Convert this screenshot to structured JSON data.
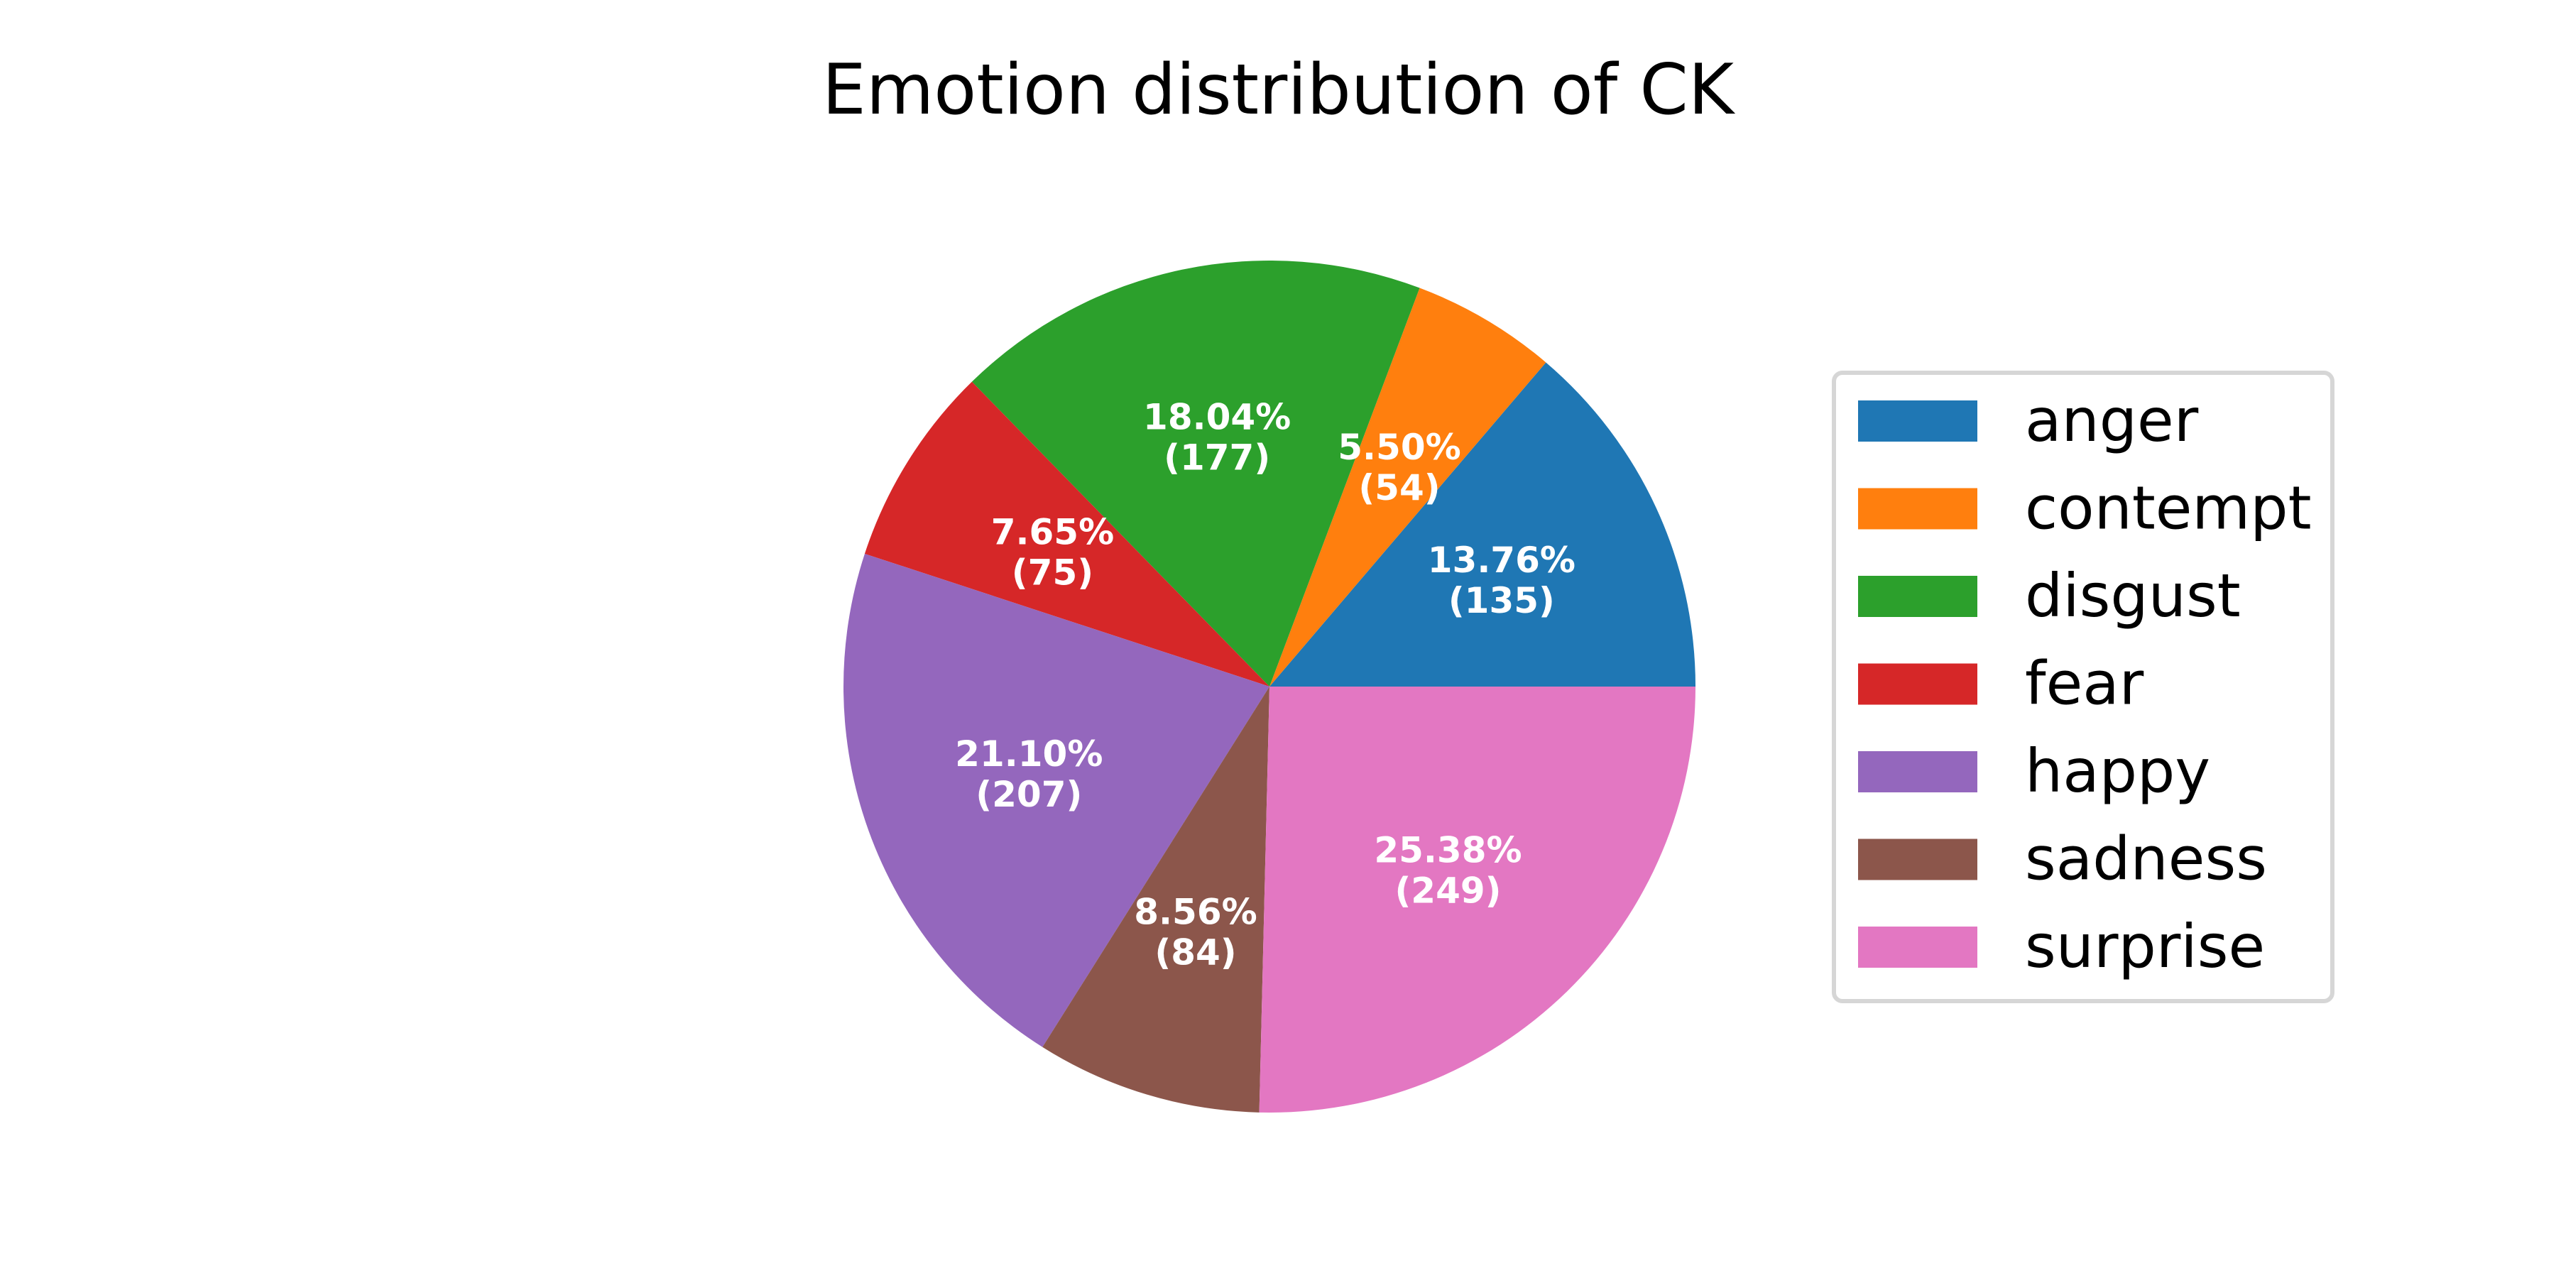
{
  "chart_data": {
    "type": "pie",
    "title": "Emotion distribution of CK",
    "categories": [
      "anger",
      "contempt",
      "disgust",
      "fear",
      "happy",
      "sadness",
      "surprise"
    ],
    "values": [
      135,
      54,
      177,
      75,
      207,
      84,
      249
    ],
    "percent_labels": [
      "13.76%",
      "5.50%",
      "18.04%",
      "7.65%",
      "21.10%",
      "8.56%",
      "25.38%"
    ],
    "count_labels": [
      "(135)",
      "(54)",
      "(177)",
      "(75)",
      "(207)",
      "(84)",
      "(249)"
    ],
    "colors": [
      "#1f77b4",
      "#ff7f0e",
      "#2ca02c",
      "#d62728",
      "#9467bd",
      "#8c564b",
      "#e377c2"
    ],
    "legend_position": "right",
    "start_angle_deg": 0,
    "direction": "counterclockwise"
  }
}
